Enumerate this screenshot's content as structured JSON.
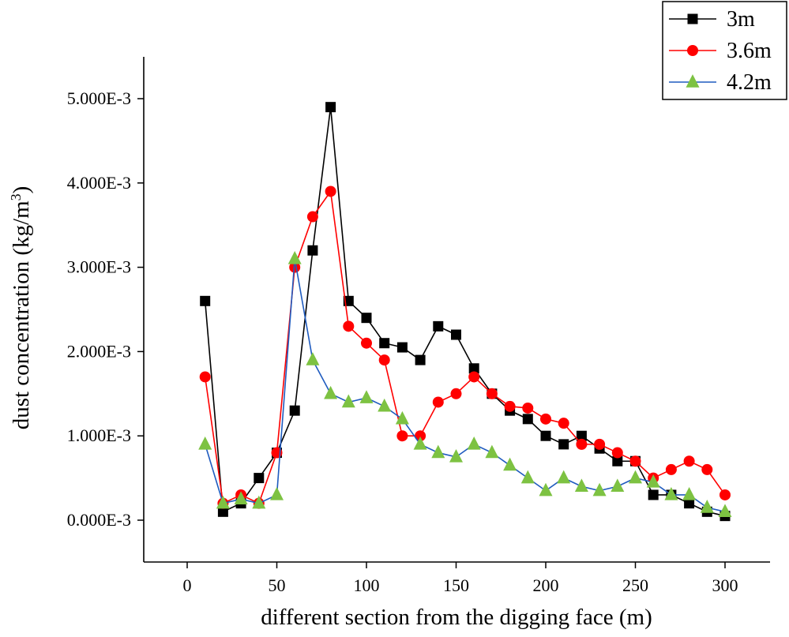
{
  "chart_data": {
    "type": "line",
    "title": "",
    "xlabel": "different section from the digging face (m)",
    "ylabel_main": "dust concentration (kg/m",
    "ylabel_sup": "3",
    "ylabel_close": ")",
    "xlim": [
      -25,
      325
    ],
    "ylim": [
      -0.0005,
      0.0055
    ],
    "xticks": [
      0,
      50,
      100,
      150,
      200,
      250,
      300
    ],
    "xtick_labels": [
      "0",
      "50",
      "100",
      "150",
      "200",
      "250",
      "300"
    ],
    "yticks": [
      0,
      0.001,
      0.002,
      0.003,
      0.004,
      0.005
    ],
    "ytick_labels": [
      "0.000E-3",
      "1.000E-3",
      "2.000E-3",
      "3.000E-3",
      "4.000E-3",
      "5.000E-3"
    ],
    "legend_position": "top-right",
    "grid": false,
    "x": [
      10,
      20,
      30,
      40,
      50,
      60,
      70,
      80,
      90,
      100,
      110,
      120,
      130,
      140,
      150,
      160,
      170,
      180,
      190,
      200,
      210,
      220,
      230,
      240,
      250,
      260,
      270,
      280,
      290,
      300
    ],
    "series": [
      {
        "name": "3m",
        "color": "#000000",
        "marker": "square",
        "values": [
          0.0026,
          0.0001,
          0.0002,
          0.0005,
          0.0008,
          0.0013,
          0.0032,
          0.0049,
          0.0026,
          0.0024,
          0.0021,
          0.00205,
          0.0019,
          0.0023,
          0.0022,
          0.0018,
          0.0015,
          0.0013,
          0.0012,
          0.001,
          0.0009,
          0.001,
          0.00085,
          0.0007,
          0.0007,
          0.0003,
          0.0003,
          0.0002,
          0.0001,
          5e-05
        ]
      },
      {
        "name": "3.6m",
        "color": "#ff0000",
        "marker": "circle",
        "values": [
          0.0017,
          0.0002,
          0.0003,
          0.0002,
          0.0008,
          0.003,
          0.0036,
          0.0039,
          0.0023,
          0.0021,
          0.0019,
          0.001,
          0.001,
          0.0014,
          0.0015,
          0.0017,
          0.0015,
          0.00135,
          0.00133,
          0.0012,
          0.00115,
          0.0009,
          0.0009,
          0.0008,
          0.0007,
          0.0005,
          0.0006,
          0.0007,
          0.0006,
          0.0003
        ]
      },
      {
        "name": "4.2m",
        "color": "#1f5bbf",
        "marker_color": "#7dc242",
        "marker": "triangle",
        "values": [
          0.0009,
          0.0002,
          0.00025,
          0.0002,
          0.0003,
          0.0031,
          0.0019,
          0.0015,
          0.0014,
          0.00145,
          0.00135,
          0.0012,
          0.0009,
          0.0008,
          0.00075,
          0.0009,
          0.0008,
          0.00065,
          0.0005,
          0.00035,
          0.0005,
          0.0004,
          0.00035,
          0.0004,
          0.0005,
          0.00045,
          0.0003,
          0.0003,
          0.00015,
          0.0001
        ]
      }
    ]
  }
}
